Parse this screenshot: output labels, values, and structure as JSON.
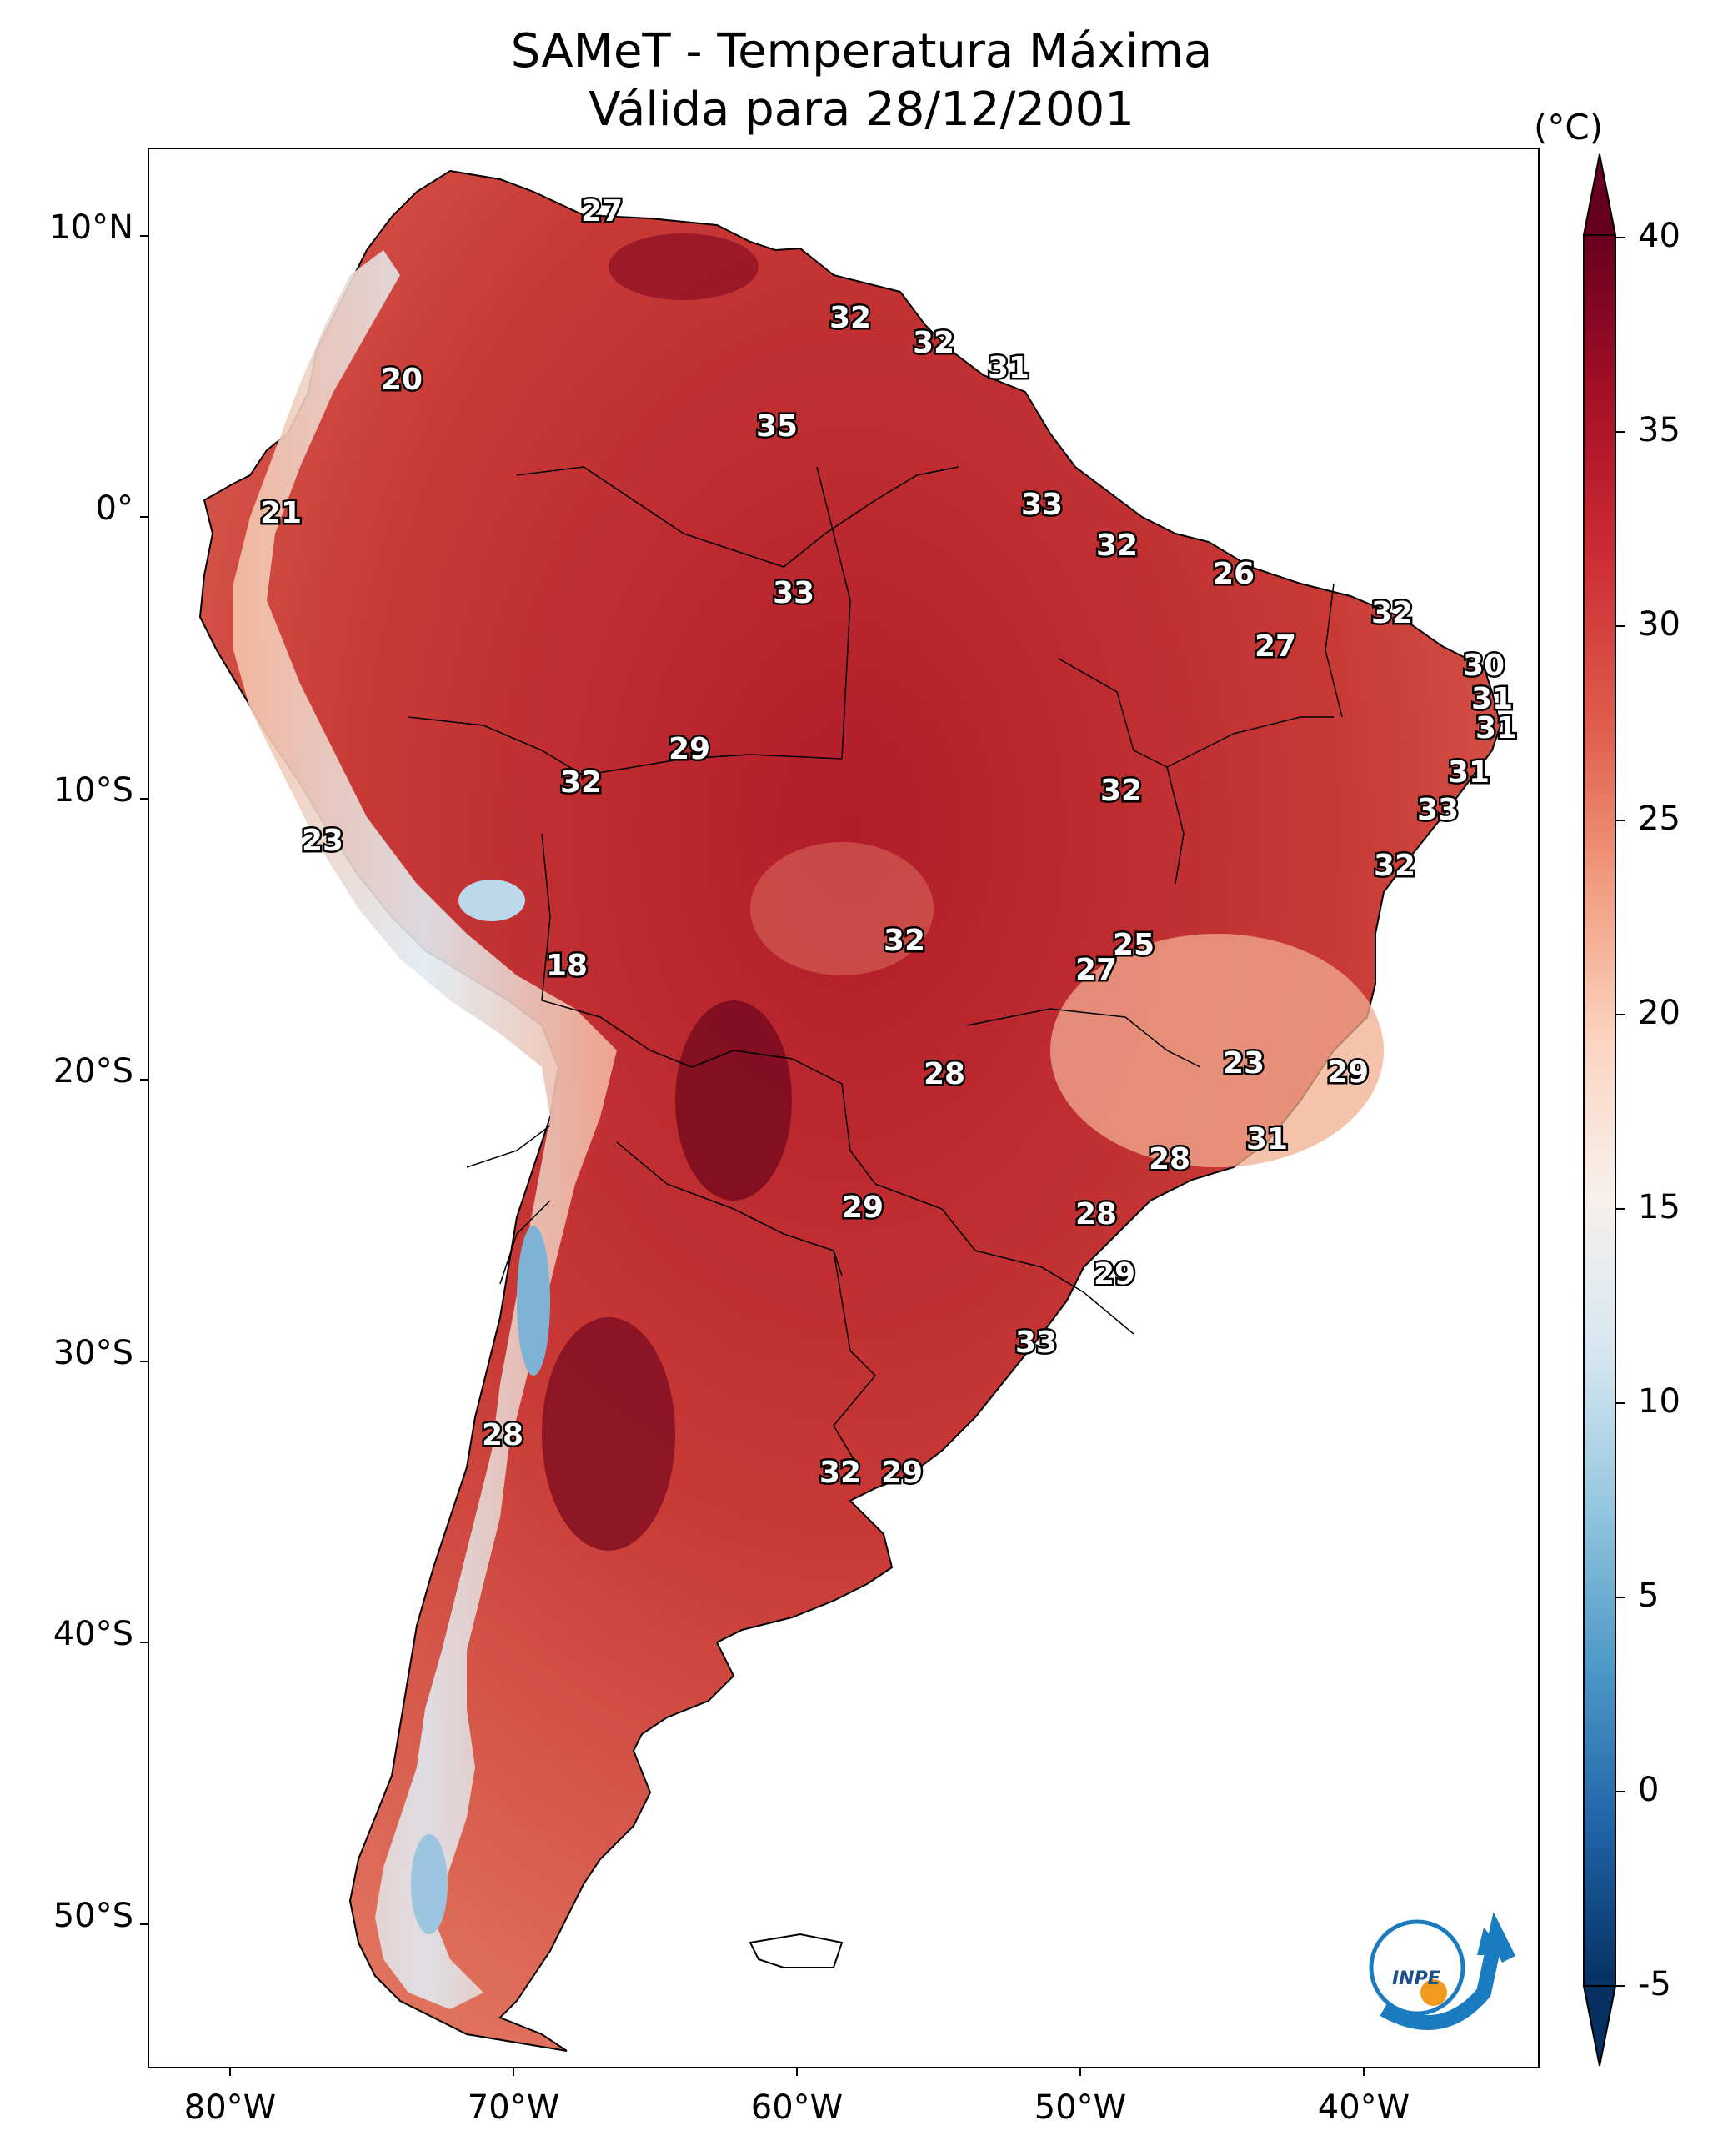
{
  "title": {
    "line1": "SAMeT - Temperatura Máxima",
    "line2": "Válida para 28/12/2001"
  },
  "colorbar": {
    "unit": "(°C)",
    "ticks": [
      "40",
      "35",
      "30",
      "25",
      "20",
      "15",
      "10",
      "5",
      "0",
      "-5"
    ],
    "colors": [
      "#67001f",
      "#a50f26",
      "#cc2b33",
      "#e05c4c",
      "#f19c7f",
      "#fbd4c0",
      "#f7f0ec",
      "#d5e6f0",
      "#92c5de",
      "#4b98c7",
      "#1f63a8",
      "#053061"
    ]
  },
  "axes": {
    "lat_labels": [
      "10°N",
      "0°",
      "10°S",
      "20°S",
      "30°S",
      "40°S",
      "50°S"
    ],
    "lon_labels": [
      "80°W",
      "70°W",
      "60°W",
      "50°W",
      "40°W"
    ]
  },
  "station_values": [
    {
      "v": "27"
    },
    {
      "v": "32"
    },
    {
      "v": "32"
    },
    {
      "v": "31"
    },
    {
      "v": "20"
    },
    {
      "v": "35"
    },
    {
      "v": "21"
    },
    {
      "v": "33"
    },
    {
      "v": "33"
    },
    {
      "v": "32"
    },
    {
      "v": "26"
    },
    {
      "v": "32"
    },
    {
      "v": "27"
    },
    {
      "v": "30"
    },
    {
      "v": "31"
    },
    {
      "v": "31"
    },
    {
      "v": "29"
    },
    {
      "v": "32"
    },
    {
      "v": "32"
    },
    {
      "v": "31"
    },
    {
      "v": "33"
    },
    {
      "v": "23"
    },
    {
      "v": "32"
    },
    {
      "v": "18"
    },
    {
      "v": "32"
    },
    {
      "v": "25"
    },
    {
      "v": "27"
    },
    {
      "v": "23"
    },
    {
      "v": "29"
    },
    {
      "v": "28"
    },
    {
      "v": "31"
    },
    {
      "v": "28"
    },
    {
      "v": "29"
    },
    {
      "v": "28"
    },
    {
      "v": "29"
    },
    {
      "v": "33"
    },
    {
      "v": "28"
    },
    {
      "v": "32"
    },
    {
      "v": "29"
    }
  ],
  "logo": {
    "text": "INPE"
  }
}
